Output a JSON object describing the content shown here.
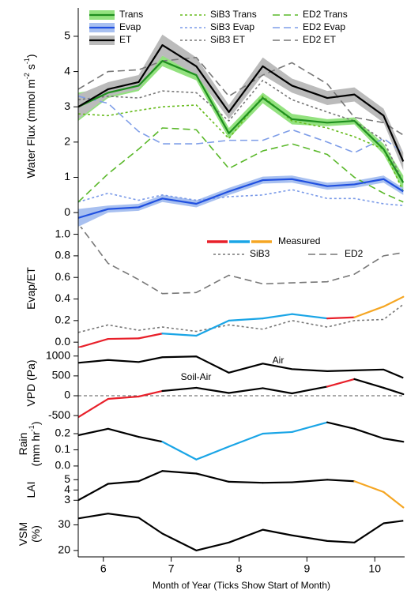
{
  "chart_data": [
    {
      "type": "line",
      "ylabel": [
        [
          "Water Flux (mmol m",
          "-2",
          " s",
          "-1",
          ")"
        ]
      ],
      "x": [
        5.63,
        6.07,
        6.52,
        6.87,
        7.37,
        7.85,
        8.35,
        8.78,
        9.3,
        9.7,
        10.13,
        10.42
      ],
      "xlim": [
        5.63,
        10.44
      ],
      "ylim": [
        -0.4,
        5.85
      ],
      "yticks": [
        0,
        1,
        2,
        3,
        4,
        5
      ],
      "series": [
        {
          "name": "Trans",
          "color": "#1f8f1f",
          "band_color": "#93e27f",
          "dash": "solid",
          "values": [
            3.0,
            3.4,
            3.6,
            4.3,
            3.9,
            2.25,
            3.25,
            2.65,
            2.55,
            2.6,
            1.8,
            0.85
          ],
          "band": [
            0.4,
            0.15,
            0.15,
            0.15,
            0.15,
            0.15,
            0.15,
            0.15,
            0.1,
            0.1,
            0.15,
            0.2
          ]
        },
        {
          "name": "Evap",
          "color": "#2050e0",
          "band_color": "#a8c0f0",
          "dash": "solid",
          "values": [
            -0.15,
            0.1,
            0.15,
            0.4,
            0.25,
            0.6,
            0.92,
            0.95,
            0.75,
            0.8,
            0.95,
            0.6
          ],
          "band": [
            0.25,
            0.1,
            0.1,
            0.1,
            0.1,
            0.1,
            0.1,
            0.1,
            0.1,
            0.1,
            0.1,
            0.1
          ]
        },
        {
          "name": "ET",
          "color": "#000000",
          "band_color": "#bbbbbb",
          "dash": "solid",
          "values": [
            3.0,
            3.5,
            3.7,
            4.75,
            4.15,
            2.85,
            4.15,
            3.6,
            3.25,
            3.35,
            2.75,
            1.45
          ],
          "band": [
            0.35,
            0.2,
            0.2,
            0.3,
            0.25,
            0.2,
            0.25,
            0.2,
            0.2,
            0.2,
            0.2,
            0.25
          ]
        },
        {
          "name": "SiB3 Trans",
          "color": "#66bb1c",
          "dash": "dot",
          "values": [
            2.8,
            2.75,
            2.9,
            3.0,
            3.05,
            2.1,
            3.3,
            2.6,
            2.4,
            2.15,
            1.8,
            0.6
          ]
        },
        {
          "name": "SiB3 Evap",
          "color": "#7a9ae8",
          "dash": "dot",
          "values": [
            0.3,
            0.55,
            0.35,
            0.5,
            0.35,
            0.45,
            0.5,
            0.65,
            0.4,
            0.4,
            0.25,
            0.2
          ]
        },
        {
          "name": "SiB3 ET",
          "color": "#777777",
          "dash": "dot",
          "values": [
            3.2,
            3.3,
            3.25,
            3.45,
            3.4,
            2.6,
            3.75,
            3.2,
            2.85,
            2.6,
            2.05,
            0.85
          ]
        },
        {
          "name": "ED2 Trans",
          "color": "#5ab82a",
          "dash": "dash",
          "values": [
            0.3,
            1.1,
            1.8,
            2.4,
            2.35,
            1.25,
            1.75,
            1.95,
            1.65,
            1.0,
            0.55,
            0.3
          ]
        },
        {
          "name": "ED2 Evap",
          "color": "#7f9ee8",
          "dash": "dash",
          "values": [
            3.3,
            3.1,
            2.3,
            1.95,
            1.95,
            2.05,
            2.05,
            2.35,
            2.0,
            1.7,
            2.1,
            1.7
          ]
        },
        {
          "name": "ED2 ET",
          "color": "#777777",
          "dash": "dash",
          "values": [
            3.5,
            4.0,
            4.05,
            4.3,
            4.4,
            3.3,
            3.9,
            4.25,
            3.65,
            2.7,
            2.55,
            2.2
          ]
        }
      ]
    },
    {
      "type": "line",
      "ylabel": [
        [
          "Evap/ET"
        ]
      ],
      "x": [
        5.63,
        6.07,
        6.52,
        6.87,
        7.37,
        7.85,
        8.35,
        8.78,
        9.3,
        9.7,
        10.13,
        10.42
      ],
      "xlim": [
        5.63,
        10.44
      ],
      "ylim": [
        -0.05,
        1.07
      ],
      "yticks": [
        {
          "value": 0,
          "label": "0.0"
        },
        0.2,
        0.4,
        0.6,
        0.8,
        {
          "value": 1,
          "label": "1.0"
        }
      ],
      "series": [
        {
          "name": "Measured",
          "dash": "solid",
          "color_segments": [
            "#e8202a",
            "#e8202a",
            "#e8202a",
            "#1aa5e6",
            "#1aa5e6",
            "#1aa5e6",
            "#1aa5e6",
            "#1aa5e6",
            "#e8202a",
            "#f5a623",
            "#f5a623"
          ],
          "values": [
            -0.05,
            0.03,
            0.035,
            0.08,
            0.06,
            0.2,
            0.22,
            0.26,
            0.22,
            0.23,
            0.33,
            0.42
          ]
        },
        {
          "name": "SiB3",
          "color": "#777777",
          "dash": "dot",
          "values": [
            0.09,
            0.16,
            0.11,
            0.14,
            0.1,
            0.16,
            0.12,
            0.2,
            0.14,
            0.2,
            0.21,
            0.35
          ]
        },
        {
          "name": "ED2",
          "color": "#777777",
          "dash": "dash",
          "values": [
            1.1,
            0.73,
            0.58,
            0.45,
            0.46,
            0.62,
            0.54,
            0.55,
            0.56,
            0.63,
            0.8,
            0.83
          ]
        }
      ]
    },
    {
      "type": "line",
      "ylabel": [
        [
          "VPD (Pa)"
        ]
      ],
      "x": [
        5.63,
        6.07,
        6.52,
        6.87,
        7.37,
        7.85,
        8.35,
        8.78,
        9.3,
        9.7,
        10.13,
        10.42
      ],
      "xlim": [
        5.63,
        10.44
      ],
      "ylim": [
        -617,
        1214
      ],
      "yticks": [
        -500,
        0,
        500,
        1000
      ],
      "zero_line": true,
      "series": [
        {
          "name": "Air",
          "color": "#000000",
          "dash": "solid",
          "values": [
            830,
            900,
            850,
            970,
            990,
            580,
            810,
            670,
            620,
            640,
            660,
            450
          ]
        },
        {
          "name": "Soil-Air",
          "dash": "solid",
          "color_segments": [
            "#e8202a",
            "#e8202a",
            "#e8202a",
            "#000000",
            "#000000",
            "#000000",
            "#000000",
            "#000000",
            "#e8202a",
            "#000000",
            "#000000"
          ],
          "values": [
            -540,
            -80,
            -20,
            120,
            200,
            70,
            190,
            60,
            230,
            420,
            200,
            40
          ]
        }
      ]
    },
    {
      "type": "line",
      "ylabel": [
        [
          "Rain"
        ],
        [
          "(mm hr",
          "-1",
          ")"
        ]
      ],
      "x": [
        5.63,
        6.07,
        6.52,
        6.87,
        7.37,
        7.85,
        8.35,
        8.78,
        9.3,
        9.7,
        10.13,
        10.42
      ],
      "xlim": [
        5.63,
        10.44
      ],
      "ylim": [
        -0.015,
        0.283
      ],
      "yticks": [
        {
          "value": 0,
          "label": "0.0"
        },
        0.1,
        0.2
      ],
      "series": [
        {
          "dash": "solid",
          "color_segments": [
            "#000000",
            "#000000",
            "#000000",
            "#1aa5e6",
            "#1aa5e6",
            "#1aa5e6",
            "#1aa5e6",
            "#1aa5e6",
            "#000000",
            "#000000",
            "#000000"
          ],
          "values": [
            0.19,
            0.23,
            0.18,
            0.15,
            0.04,
            0.12,
            0.2,
            0.21,
            0.27,
            0.23,
            0.17,
            0.15
          ]
        }
      ]
    },
    {
      "type": "line",
      "ylabel": [
        [
          "LAI"
        ]
      ],
      "x": [
        5.63,
        6.07,
        6.52,
        6.87,
        7.37,
        7.85,
        8.35,
        8.78,
        9.3,
        9.7,
        10.13,
        10.42
      ],
      "xlim": [
        5.63,
        10.44
      ],
      "ylim": [
        2.1,
        6.1
      ],
      "yticks": [
        3,
        4,
        5
      ],
      "series": [
        {
          "dash": "solid",
          "color_segments": [
            "#000000",
            "#000000",
            "#000000",
            "#000000",
            "#000000",
            "#000000",
            "#000000",
            "#000000",
            "#000000",
            "#f5a623",
            "#f5a623"
          ],
          "values": [
            3.0,
            4.6,
            4.85,
            5.85,
            5.6,
            4.8,
            4.7,
            4.75,
            5.0,
            4.85,
            3.8,
            2.3
          ]
        }
      ]
    },
    {
      "type": "line",
      "ylabel": [
        [
          "VSM"
        ],
        [
          "(%)"
        ]
      ],
      "xlabel": "Month of Year (Ticks Show Start of Month)",
      "x": [
        5.63,
        6.07,
        6.52,
        6.87,
        7.37,
        7.85,
        8.35,
        8.78,
        9.3,
        9.7,
        10.13,
        10.42
      ],
      "xlim": [
        5.63,
        10.44
      ],
      "ylim": [
        17.5,
        36
      ],
      "yticks": [
        20,
        30
      ],
      "xticks": [
        6,
        7,
        8,
        9,
        10
      ],
      "series": [
        {
          "color": "#000000",
          "dash": "solid",
          "values": [
            32.5,
            34.4,
            32.8,
            26.6,
            20,
            23.1,
            28.1,
            25.9,
            23.7,
            23.1,
            30.6,
            31.6
          ]
        }
      ]
    }
  ]
}
